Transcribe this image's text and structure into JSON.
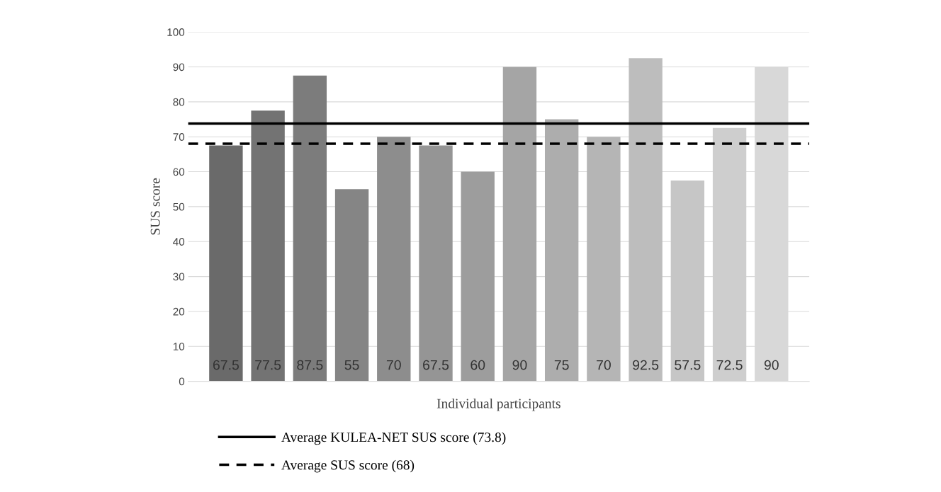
{
  "chart_data": {
    "type": "bar",
    "xlabel": "Individual participants",
    "ylabel": "SUS score",
    "categories": [
      null,
      null,
      null,
      null,
      null,
      null,
      null,
      null,
      null,
      null,
      null,
      null,
      null,
      null
    ],
    "values": [
      67.5,
      77.5,
      87.5,
      55,
      70,
      67.5,
      60,
      90,
      75,
      70,
      92.5,
      57.5,
      72.5,
      90
    ],
    "colors": [
      "#6a6a6a",
      "#737373",
      "#7c7c7c",
      "#858585",
      "#8d8d8d",
      "#959595",
      "#9d9d9d",
      "#a5a5a5",
      "#adadad",
      "#b5b5b5",
      "#bdbdbd",
      "#c6c6c6",
      "#cecece",
      "#d8d8d8"
    ],
    "data_labels": true,
    "ylim": [
      0,
      100
    ],
    "yticks": [
      0,
      10,
      20,
      30,
      40,
      50,
      60,
      70,
      80,
      90,
      100
    ],
    "grid": "y",
    "ref_lines": [
      {
        "axis": "y",
        "value": 73.8,
        "label": "Average KULEA-NET SUS score (73.8)",
        "color": "#000000",
        "line_style": "solid"
      },
      {
        "axis": "y",
        "value": 68,
        "label": "Average SUS score (68)",
        "color": "#000000",
        "line_style": "dashed"
      }
    ],
    "legend": "bottom"
  }
}
